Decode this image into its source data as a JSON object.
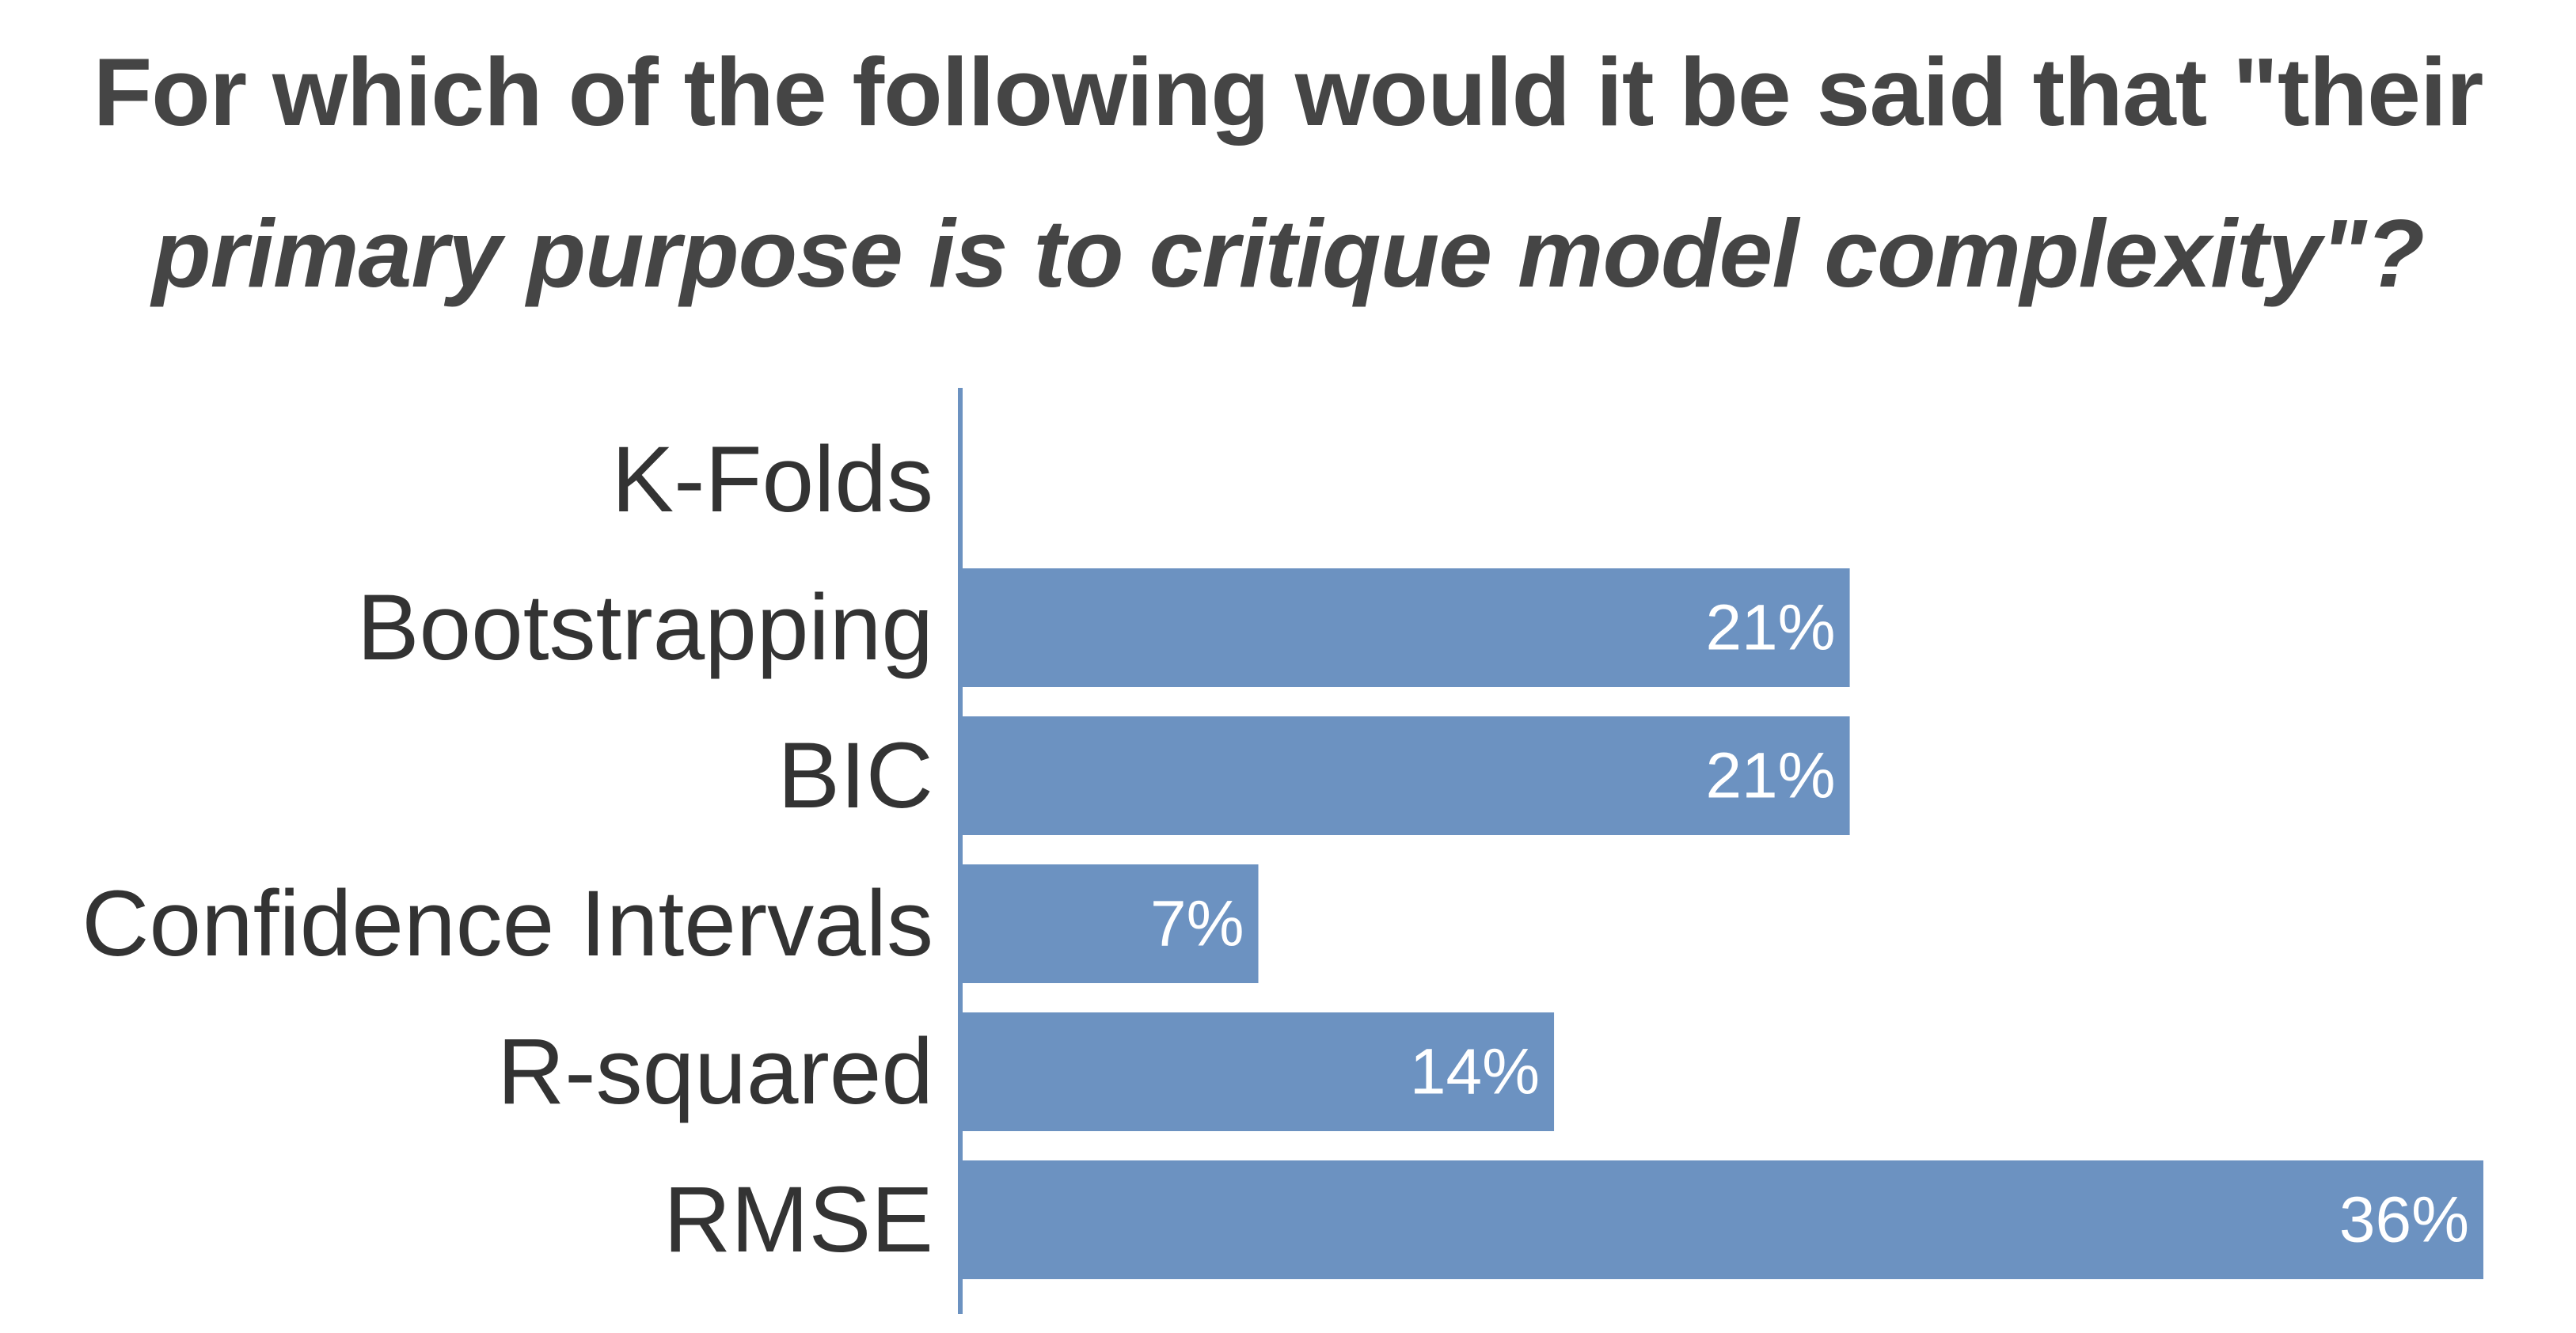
{
  "title_line1": "For which of the following would it be said that \"their",
  "title_line2": "primary purpose is to critique model complexity\"?",
  "colors": {
    "bar": "#6c92c1",
    "axis": "#6c92c1",
    "title": "#454545",
    "label": "#333333",
    "data_label": "#ffffff"
  },
  "chart_data": {
    "type": "bar",
    "orientation": "horizontal",
    "title": "For which of the following would it be said that \"their primary purpose is to critique model complexity\"?",
    "categories": [
      "K-Folds",
      "Bootstrapping",
      "BIC",
      "Confidence Intervals",
      "R-squared",
      "RMSE"
    ],
    "values": [
      0,
      21,
      21,
      7,
      14,
      36
    ],
    "data_labels": [
      "",
      "21%",
      "21%",
      "7%",
      "14%",
      "36%"
    ],
    "xlim": [
      0,
      36
    ],
    "grid": false,
    "legend": "none"
  }
}
